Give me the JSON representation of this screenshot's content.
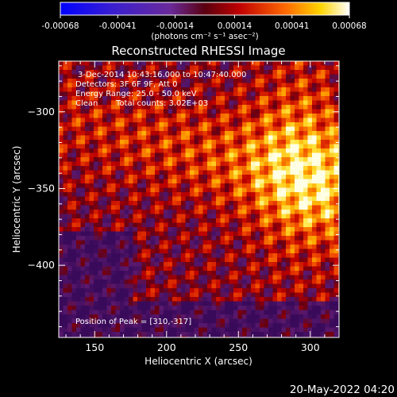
{
  "colorbar": {
    "ticks": [
      "-0.00068",
      "-0.00041",
      "-0.00014",
      "0.00014",
      "0.00041",
      "0.00068"
    ],
    "unit_label": "(photons cm⁻² s⁻¹ asec⁻²)"
  },
  "header": {
    "title": "Reconstructed RHESSI Image"
  },
  "info": {
    "time_range": "3-Dec-2014 10:43:16.000 to 10:47:40.000",
    "detectors": "Detectors: 3F 6F 9F, Att 0",
    "energy": "Energy Range: 25.0 - 50.0 keV",
    "method": "Clean",
    "total_counts": "Total counts: 3.02E+03",
    "peak": "Position of Peak = [310,-317]"
  },
  "footer": {
    "date_stamp": "20-May-2022 04:20"
  },
  "chart_data": {
    "type": "heatmap",
    "title": "Reconstructed RHESSI Image",
    "xlabel": "Heliocentric X (arcsec)",
    "ylabel": "Heliocentric Y (arcsec)",
    "xlim": [
      125,
      320
    ],
    "ylim": [
      -447,
      -267
    ],
    "x_ticks": [
      150,
      200,
      250,
      300
    ],
    "x_tick_labels": [
      "150",
      "200",
      "250",
      "300"
    ],
    "y_ticks": [
      -300,
      -350,
      -400
    ],
    "y_tick_labels": [
      "−300",
      "−350",
      "−400"
    ],
    "colormap": "hot (blue-purple for negative, red-yellow-white for positive)",
    "vmin": -0.00068,
    "vmax": 0.00068,
    "peak_position": [
      310,
      -317
    ],
    "grid": false
  }
}
